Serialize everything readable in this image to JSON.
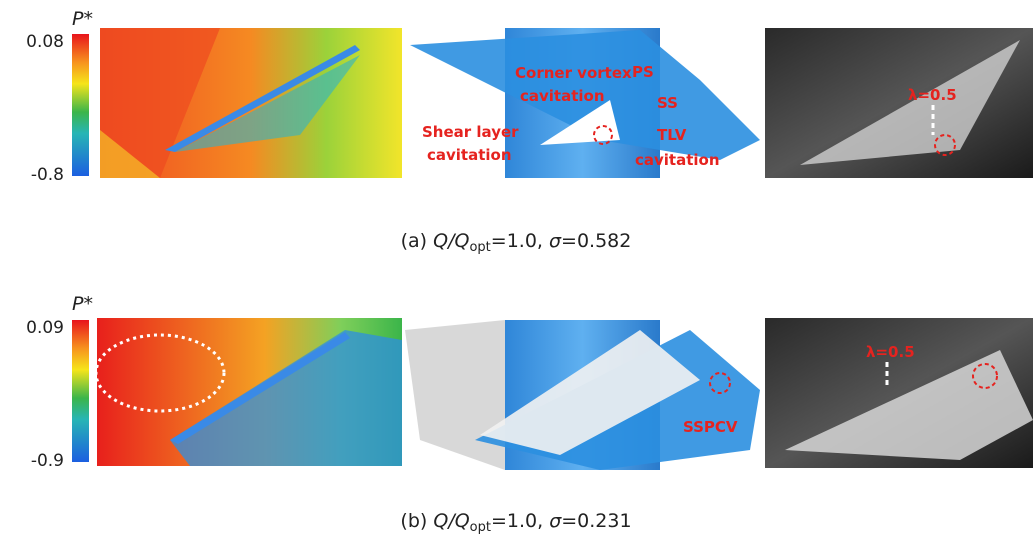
{
  "panels": [
    {
      "colorbar": {
        "symbol": "P*",
        "max": "0.08",
        "min": "-0.8"
      },
      "annotations": {
        "corner_vortex": [
          "Corner vortex",
          "cavitation"
        ],
        "ps": "PS",
        "ss": "SS",
        "shear_layer": [
          "Shear layer",
          "cavitation"
        ],
        "tlv": [
          "TLV",
          "cavitation"
        ],
        "lambda": "λ=0.5"
      },
      "caption": {
        "label": "(a)",
        "q": "Q",
        "slash": "/Q",
        "sub": "opt",
        "flow": "=1.0, ",
        "sigma": "σ",
        "value": "=0.582"
      }
    },
    {
      "colorbar": {
        "symbol": "P*",
        "max": "0.09",
        "min": "-0.9"
      },
      "annotations": {
        "lambda": "λ=0.5",
        "sspcv": "SSPCV"
      },
      "caption": {
        "label": "(b)",
        "q": "Q",
        "slash": "/Q",
        "sub": "opt",
        "flow": "=1.0, ",
        "sigma": "σ",
        "value": "=0.231"
      }
    }
  ]
}
